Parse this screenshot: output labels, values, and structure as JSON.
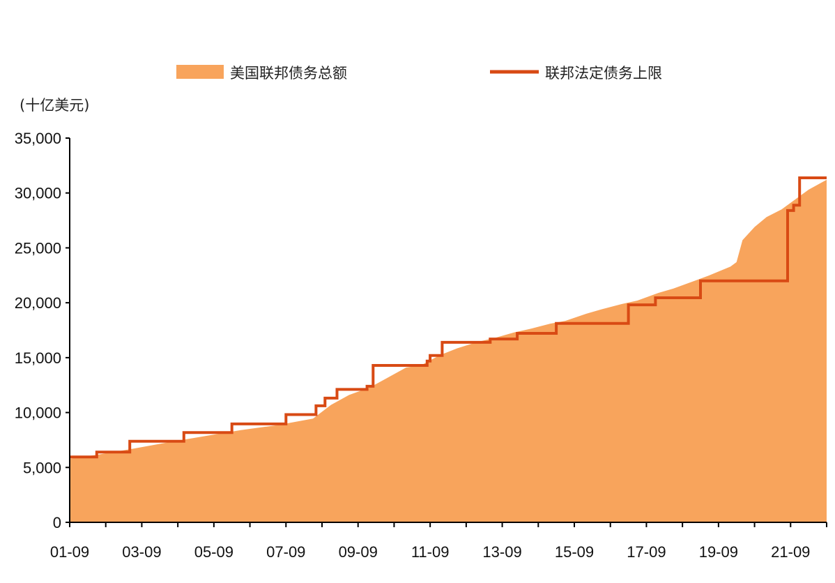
{
  "chart_data": {
    "type": "area",
    "unit_label": "(十亿美元)",
    "ylim": [
      0,
      35000
    ],
    "y_ticks": [
      0,
      5000,
      10000,
      15000,
      20000,
      25000,
      30000,
      35000
    ],
    "y_tick_labels": [
      "0",
      "5,000",
      "10,000",
      "15,000",
      "20,000",
      "25,000",
      "30,000",
      "35,000"
    ],
    "x_range": [
      "2001-09",
      "2022-09"
    ],
    "x_tick_labels": [
      "01-09",
      "03-09",
      "05-09",
      "07-09",
      "09-09",
      "11-09",
      "13-09",
      "15-09",
      "17-09",
      "19-09",
      "21-09"
    ],
    "grid": false,
    "legend_position": "top",
    "series": [
      {
        "name": "美国联邦债务总额",
        "kind": "area",
        "color": "#F8A45C",
        "points": [
          [
            "2001-09",
            5800
          ],
          [
            "2002-06",
            6150
          ],
          [
            "2003-06",
            6700
          ],
          [
            "2004-06",
            7300
          ],
          [
            "2005-06",
            7850
          ],
          [
            "2006-06",
            8400
          ],
          [
            "2007-06",
            8850
          ],
          [
            "2008-06",
            9450
          ],
          [
            "2008-12",
            10700
          ],
          [
            "2009-06",
            11600
          ],
          [
            "2010-01",
            12300
          ],
          [
            "2010-06",
            13050
          ],
          [
            "2011-01",
            14100
          ],
          [
            "2011-06",
            14300
          ],
          [
            "2011-12",
            15200
          ],
          [
            "2012-06",
            15850
          ],
          [
            "2013-01",
            16450
          ],
          [
            "2013-06",
            16750
          ],
          [
            "2014-01",
            17300
          ],
          [
            "2014-06",
            17600
          ],
          [
            "2015-01",
            18100
          ],
          [
            "2015-06",
            18350
          ],
          [
            "2016-01",
            19000
          ],
          [
            "2016-06",
            19400
          ],
          [
            "2017-01",
            19900
          ],
          [
            "2017-06",
            20200
          ],
          [
            "2018-01",
            20900
          ],
          [
            "2018-06",
            21300
          ],
          [
            "2019-01",
            22000
          ],
          [
            "2019-06",
            22500
          ],
          [
            "2020-01",
            23300
          ],
          [
            "2020-03",
            23700
          ],
          [
            "2020-05",
            25700
          ],
          [
            "2020-09",
            26900
          ],
          [
            "2021-01",
            27800
          ],
          [
            "2021-06",
            28500
          ],
          [
            "2021-12",
            29700
          ],
          [
            "2022-03",
            30300
          ],
          [
            "2022-09",
            31200
          ]
        ]
      },
      {
        "name": "联邦法定债务上限",
        "kind": "step",
        "color": "#D84A14",
        "points": [
          [
            "2001-09",
            5950
          ],
          [
            "2002-06",
            6400
          ],
          [
            "2003-05",
            7384
          ],
          [
            "2004-11",
            8184
          ],
          [
            "2006-03",
            8965
          ],
          [
            "2007-09",
            9815
          ],
          [
            "2008-07",
            10615
          ],
          [
            "2008-10",
            11315
          ],
          [
            "2009-02",
            12104
          ],
          [
            "2009-12",
            12394
          ],
          [
            "2010-02",
            14294
          ],
          [
            "2011-08",
            14694
          ],
          [
            "2011-09",
            15194
          ],
          [
            "2012-01",
            16394
          ],
          [
            "2013-05",
            16700
          ],
          [
            "2014-02",
            17212
          ],
          [
            "2015-03",
            18113
          ],
          [
            "2017-03",
            19809
          ],
          [
            "2017-12",
            20456
          ],
          [
            "2019-03",
            21988
          ],
          [
            "2021-08",
            28400
          ],
          [
            "2021-10",
            28881
          ],
          [
            "2021-12",
            31381
          ],
          [
            "2022-09",
            31381
          ]
        ]
      }
    ]
  }
}
